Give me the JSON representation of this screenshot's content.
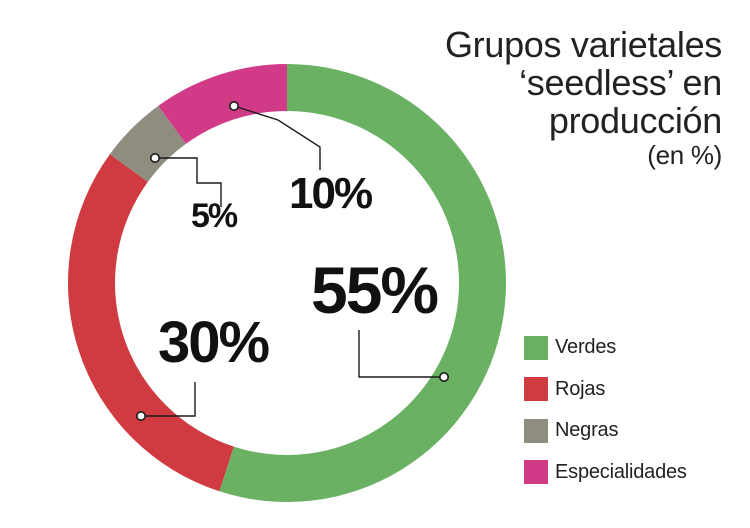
{
  "chart_data": {
    "type": "pie",
    "variant": "donut",
    "title": "Grupos varietales ‘seedless’ en producción",
    "title_lines": [
      "Grupos varietales",
      "‘seedless’ en",
      "producción"
    ],
    "subtitle": "(en %)",
    "categories": [
      "Verdes",
      "Rojas",
      "Negras",
      "Especialidades"
    ],
    "values": [
      55,
      30,
      5,
      10
    ],
    "value_labels": [
      "55%",
      "30%",
      "5%",
      "10%"
    ],
    "colors": [
      "#6bb163",
      "#d03a41",
      "#8f8d80",
      "#d13a87"
    ],
    "legend_position": "bottom-right",
    "start_angle_deg": 0,
    "direction": "clockwise"
  }
}
